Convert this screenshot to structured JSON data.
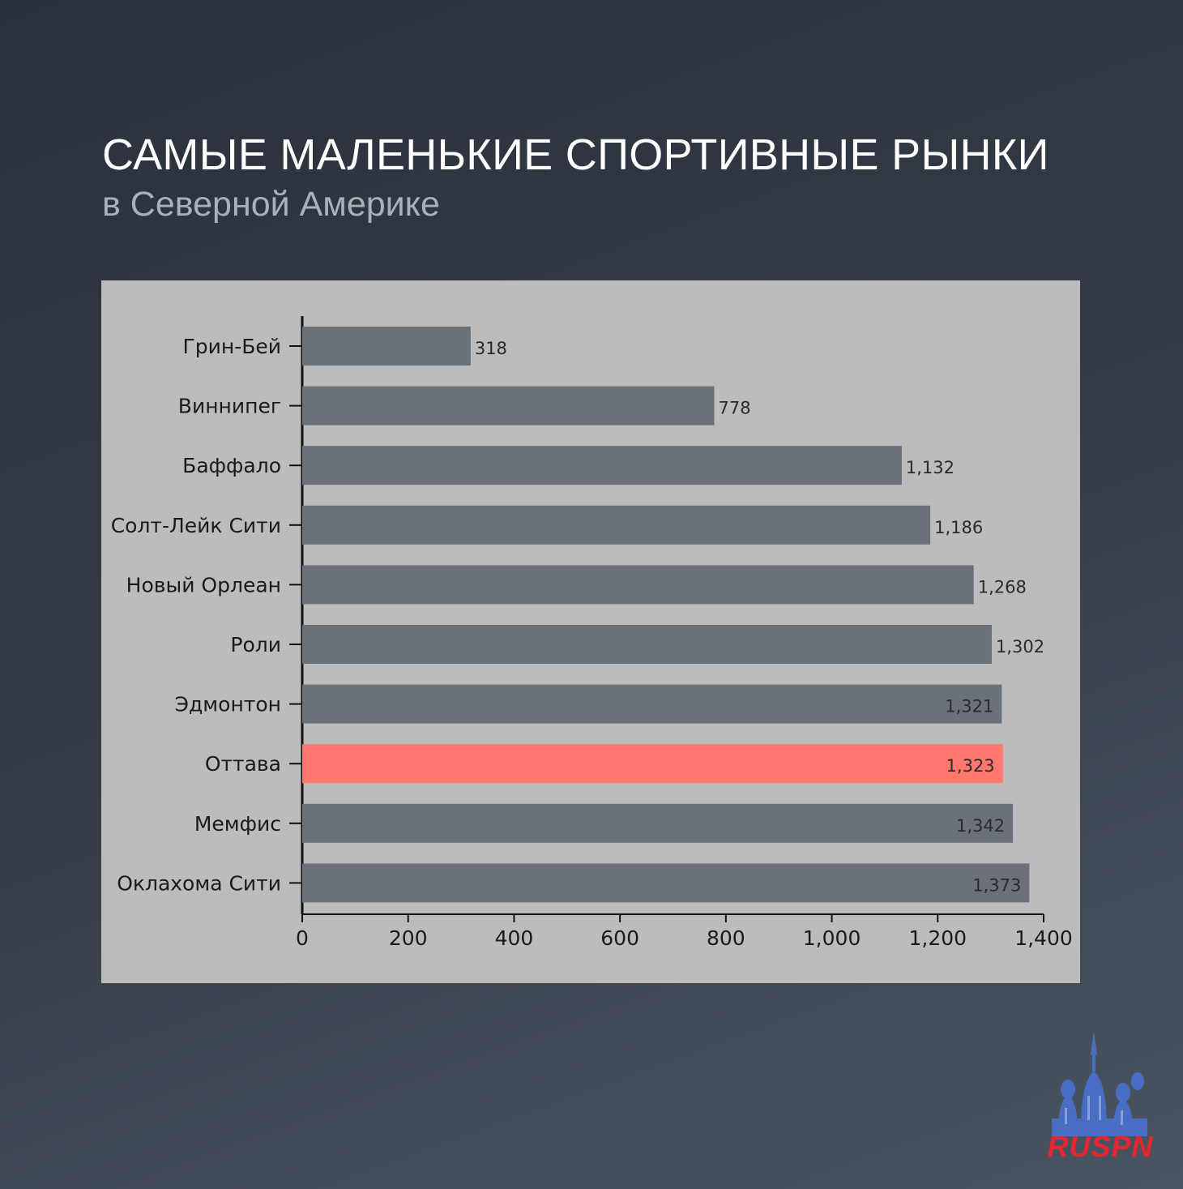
{
  "title": "САМЫЕ МАЛЕНЬКИЕ СПОРТИВНЫЕ РЫНКИ",
  "subtitle": "в Северной Америке",
  "brand": "RUSPN",
  "colors": {
    "bar": "#6a7179",
    "highlight": "#ff776d",
    "panel": "#bcbcbc"
  },
  "chart_data": {
    "type": "bar",
    "orientation": "horizontal",
    "categories": [
      "Грин-Бей",
      "Виннипег",
      "Баффало",
      "Солт-Лейк Сити",
      "Новый Орлеан",
      "Роли",
      "Эдмонтон",
      "Оттава",
      "Мемфис",
      "Оклахома Сити"
    ],
    "values": [
      318,
      778,
      1132,
      1186,
      1268,
      1302,
      1321,
      1323,
      1342,
      1373
    ],
    "value_labels": [
      "318",
      "778",
      "1,132",
      "1,186",
      "1,268",
      "1,302",
      "1,321",
      "1,323",
      "1,342",
      "1,373"
    ],
    "highlight": "Оттава",
    "xlim": [
      0,
      1400
    ],
    "xticks": [
      0,
      200,
      400,
      600,
      800,
      1000,
      1200,
      1400
    ],
    "xtick_labels": [
      "0",
      "200",
      "400",
      "600",
      "800",
      "1,000",
      "1,200",
      "1,400"
    ],
    "grid": false,
    "legend": "none"
  }
}
